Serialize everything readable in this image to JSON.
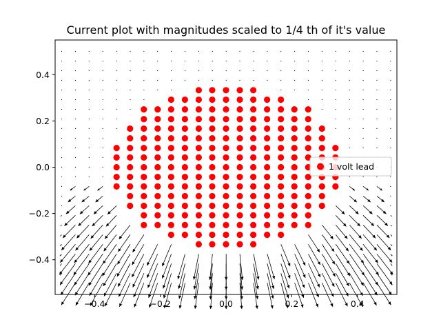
{
  "chart_data": {
    "type": "scatter",
    "subtype": "quiver-with-scatter",
    "title": "Current plot with magnitudes scaled to 1/4 th of it's value",
    "xlabel": "",
    "ylabel": "",
    "xlim": [
      -0.52,
      0.52
    ],
    "ylim": [
      -0.55,
      0.55
    ],
    "x_ticks": [
      -0.4,
      -0.2,
      0.0,
      0.2,
      0.4
    ],
    "x_tick_labels": [
      "−0.4",
      "−0.2",
      "0.0",
      "0.2",
      "0.4"
    ],
    "y_ticks": [
      -0.4,
      -0.2,
      0.0,
      0.2,
      0.4
    ],
    "y_tick_labels": [
      "−0.4",
      "−0.2",
      "0.0",
      "0.2",
      "0.4"
    ],
    "grid": false,
    "legend": {
      "placement": "right",
      "entries": [
        "1 volt lead"
      ]
    },
    "scatter_series": {
      "name": "1 volt lead",
      "color": "#ff0000",
      "marker": "circle",
      "region": {
        "shape": "disk",
        "center": [
          0.0,
          0.0
        ],
        "radius": 0.35,
        "y_min": -0.35
      },
      "grid_step_y": 0.0417,
      "row_y": [
        0.333,
        0.292,
        0.25,
        0.208,
        0.167,
        0.125,
        0.083,
        0.042,
        0.0,
        -0.042,
        -0.083,
        -0.125,
        -0.167,
        -0.208,
        -0.25,
        -0.292,
        -0.333
      ],
      "column_x": [
        -0.333,
        -0.292,
        -0.25,
        -0.208,
        -0.167,
        -0.125,
        -0.083,
        -0.042,
        0.0,
        0.042,
        0.083,
        0.125,
        0.167,
        0.208,
        0.25,
        0.292,
        0.333
      ]
    },
    "quiver_series": {
      "name": "current",
      "color": "#000000",
      "grid_range": [
        -0.5,
        0.5
      ],
      "grid_step": 0.0417,
      "magnitude_scale": "1/4",
      "strong_region": "below the lead (y < -0.1)",
      "direction": "downward and outward from the lead"
    }
  },
  "colors": {
    "lead": "#ff0000",
    "arrows": "#000000",
    "axes": "#000000",
    "background": "#ffffff"
  }
}
